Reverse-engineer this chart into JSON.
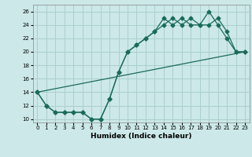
{
  "xlabel": "Humidex (Indice chaleur)",
  "bg_color": "#cce8e8",
  "grid_color": "#aacfcf",
  "line_color": "#1a6b5a",
  "xlim": [
    -0.5,
    23.5
  ],
  "ylim": [
    9.5,
    27
  ],
  "xticks": [
    0,
    1,
    2,
    3,
    4,
    5,
    6,
    7,
    8,
    9,
    10,
    11,
    12,
    13,
    14,
    15,
    16,
    17,
    18,
    19,
    20,
    21,
    22,
    23
  ],
  "yticks": [
    10,
    12,
    14,
    16,
    18,
    20,
    22,
    24,
    26
  ],
  "line1_x": [
    0,
    1,
    2,
    3,
    4,
    5,
    6,
    7,
    8,
    9,
    10,
    11,
    12,
    13,
    14,
    15,
    16,
    17,
    18,
    19,
    20,
    21,
    22,
    23
  ],
  "line1_y": [
    14,
    12,
    11,
    11,
    11,
    11,
    10,
    10,
    13,
    17,
    20,
    21,
    22,
    23,
    25,
    24,
    25,
    24,
    24,
    24,
    25,
    23,
    20,
    20
  ],
  "line2_x": [
    0,
    1,
    2,
    3,
    4,
    5,
    6,
    7,
    8,
    9,
    10,
    11,
    12,
    13,
    14,
    15,
    16,
    17,
    18,
    19,
    20,
    21,
    22,
    23
  ],
  "line2_y": [
    14,
    12,
    11,
    11,
    11,
    11,
    10,
    10,
    13,
    17,
    20,
    21,
    22,
    23,
    24,
    25,
    24,
    25,
    24,
    26,
    24,
    22,
    20,
    20
  ],
  "line3_x": [
    0,
    23
  ],
  "line3_y": [
    14,
    20
  ]
}
